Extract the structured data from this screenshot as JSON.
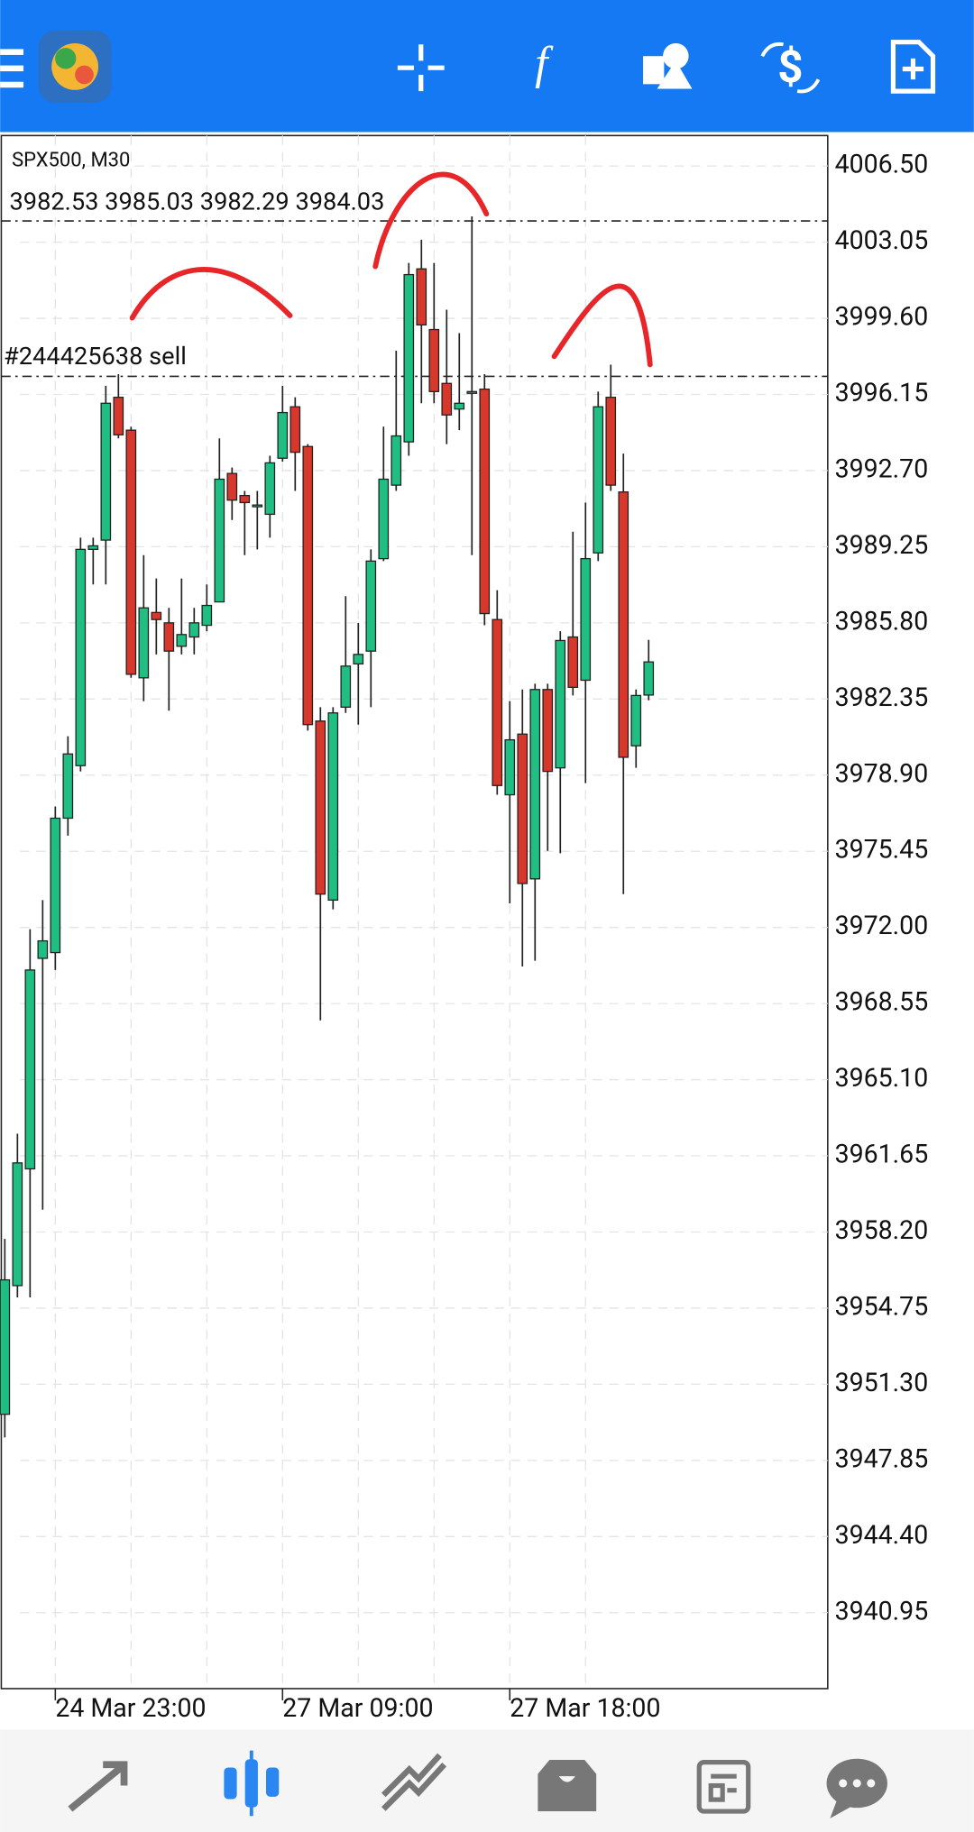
{
  "chart_data": {
    "type": "candlestick",
    "title": "SPX500, M30",
    "subtitle": "3982.53 3985.03 3982.29 3984.03",
    "categories": [
      null,
      null,
      null,
      null,
      "24 Mar 23:00",
      null,
      null,
      null,
      null,
      null,
      null,
      null,
      null,
      null,
      null,
      null,
      null,
      null,
      null,
      null,
      null,
      null,
      "27 Mar 09:00",
      null,
      null,
      null,
      null,
      null,
      null,
      null,
      null,
      null,
      null,
      null,
      null,
      null,
      null,
      null,
      null,
      null,
      "27 Mar 18:00",
      null,
      null,
      null,
      null,
      null,
      null,
      null,
      null,
      null,
      null,
      null
    ],
    "open": [
      3949.94,
      3955.77,
      3961.06,
      3970.6,
      3970.86,
      3976.95,
      3979.33,
      3989.13,
      3989.55,
      3996.02,
      3994.53,
      3983.31,
      3986.27,
      3985.8,
      3984.74,
      3985.16,
      3985.69,
      3986.75,
      3992.57,
      3991.57,
      3991.14,
      3990.72,
      3993.26,
      3995.59,
      3993.79,
      3981.35,
      3973.24,
      3981.98,
      3983.94,
      3984.52,
      3988.71,
      3992.04,
      3994,
      4001.84,
      3999.09,
      3996.65,
      3995.49,
      3996.28,
      3996.39,
      3985.95,
      3978.01,
      3980.76,
      3974.2,
      3982.78,
      3979.23,
      3985.16,
      3983.2,
      3988.97,
      3996.02,
      3991.73,
      3980.23,
      3982.53
    ],
    "high": [
      3957.89,
      3962.65,
      3971.92,
      3973.24,
      3977.48,
      3980.66,
      3989.66,
      3989.66,
      3996.54,
      3997.07,
      3994.69,
      3988.87,
      3987.81,
      3986.48,
      3987.81,
      3986.48,
      3987.54,
      3994.16,
      3992.84,
      3991.78,
      3991.78,
      3993.37,
      3996.54,
      3996.02,
      3993.9,
      3981.98,
      3981.98,
      3987.01,
      3985.8,
      3989.13,
      3994.69,
      3998.13,
      4002.11,
      4003.16,
      4002.11,
      3999.99,
      3998.93,
      4004.22,
      3997.07,
      3987.28,
      3982.25,
      3982.78,
      3983.04,
      3983.04,
      3985.42,
      3989.93,
      3991.25,
      3996.28,
      3997.5,
      3993.47,
      3982.78,
      3985.03
    ],
    "low": [
      3948.89,
      3955.24,
      3955.24,
      3959.21,
      3970.07,
      3976.16,
      3979.07,
      3987.54,
      3987.54,
      3994.16,
      3983.31,
      3982.25,
      3984.37,
      3981.82,
      3984.37,
      3984.37,
      3985.42,
      3986.75,
      3990.46,
      3988.87,
      3989.13,
      3989.66,
      3993.1,
      3991.78,
      3980.92,
      3967.79,
      3972.82,
      3981.72,
      3981.19,
      3981.98,
      3988.6,
      3991.78,
      3993.37,
      3995.75,
      3995.75,
      3993.9,
      3994.53,
      3988.87,
      3985.69,
      3978.01,
      3973.09,
      3970.23,
      3970.49,
      3975.47,
      3975.36,
      3982.51,
      3978.54,
      3988.6,
      3991.78,
      3973.51,
      3979.23,
      3982.29
    ],
    "close": [
      3956.03,
      3961.33,
      3970.07,
      3971.39,
      3976.95,
      3979.86,
      3989.13,
      3989.29,
      3995.75,
      3994.32,
      3983.47,
      3986.48,
      3985.95,
      3984.52,
      3985.27,
      3985.8,
      3986.59,
      3992.31,
      3991.36,
      3991.25,
      3991.14,
      3993.05,
      3995.33,
      3993.53,
      3981.19,
      3973.51,
      3981.72,
      3983.84,
      3984.37,
      3988.6,
      3992.31,
      3994.27,
      4001.58,
      3999.3,
      3996.28,
      3995.22,
      3995.75,
      3996.28,
      3986.22,
      3978.43,
      3980.5,
      3973.99,
      3982.78,
      3979.07,
      3985,
      3982.88,
      3988.71,
      3995.59,
      3992.04,
      3979.71,
      3982.51,
      3984.03
    ],
    "up_color": "#1fbf84",
    "down_color": "#d8372b",
    "ylim": [
      3937.51,
      4007.88
    ],
    "yticks": [
      {
        "value": 4006.5,
        "label": "4006.50"
      },
      4003.05,
      {
        "value": 3999.6,
        "label": "3999.60"
      },
      3996.15,
      {
        "value": 3992.7,
        "label": "3992.70"
      },
      3989.25,
      {
        "value": 3985.8,
        "label": "3985.80"
      },
      3982.35,
      {
        "value": 3978.9,
        "label": "3978.90"
      },
      3975.45,
      {
        "value": 3972,
        "label": "3972.00"
      },
      3968.55,
      {
        "value": 3965.1,
        "label": "3965.10"
      },
      3961.65,
      {
        "value": 3958.2,
        "label": "3958.20"
      },
      3954.75,
      {
        "value": 3951.3,
        "label": "3951.30"
      },
      3947.85,
      {
        "value": 3944.4,
        "label": "3944.40"
      },
      3940.95
    ],
    "grid": true,
    "high_line": 4004.01,
    "order_line": {
      "label": "#244425638 sell",
      "value": 3996.97
    }
  }
}
